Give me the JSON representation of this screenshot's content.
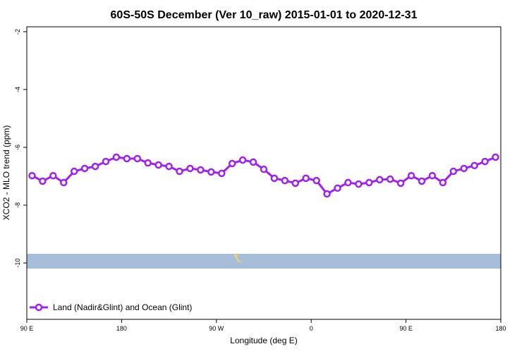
{
  "chart_data": {
    "type": "line",
    "title": "60S-50S December (Ver 10_raw)   2015-01-01 to 2020-12-31",
    "xlabel": "Longitude (deg E)",
    "ylabel": "XCO2 - MLO trend (ppm)",
    "x": [
      95,
      105,
      115,
      125,
      135,
      145,
      155,
      165,
      175,
      185,
      195,
      205,
      215,
      225,
      235,
      245,
      255,
      265,
      275,
      285,
      295,
      305,
      315,
      325,
      335,
      345,
      355,
      365,
      375,
      385,
      395,
      405,
      415,
      425,
      435,
      445,
      455,
      465,
      475,
      485,
      495,
      505,
      515,
      525,
      535
    ],
    "series": [
      {
        "name": "Land (Nadir&Glint) and Ocean (Glint)",
        "color": "#a020f0",
        "values": [
          -6.98,
          -7.17,
          -6.98,
          -7.22,
          -6.83,
          -6.73,
          -6.66,
          -6.49,
          -6.34,
          -6.39,
          -6.39,
          -6.54,
          -6.61,
          -6.66,
          -6.83,
          -6.73,
          -6.78,
          -6.85,
          -6.9,
          -6.56,
          -6.44,
          -6.51,
          -6.76,
          -7.07,
          -7.15,
          -7.24,
          -7.07,
          -7.15,
          -7.61,
          -7.41,
          -7.22,
          -7.27,
          -7.22,
          -7.12,
          -7.1,
          -7.24,
          -6.98,
          -7.17,
          -6.98,
          -7.22,
          -6.83,
          -6.73,
          -6.63,
          -6.49,
          -6.34
        ]
      }
    ],
    "xlim": [
      90,
      540
    ],
    "xticks": [
      {
        "value": 90,
        "label": "90 E"
      },
      180,
      {
        "value": 270,
        "label": "90 W"
      },
      {
        "value": 360,
        "label": "0"
      },
      {
        "value": 450,
        "label": "90 E"
      },
      {
        "value": 540,
        "label": "180"
      }
    ],
    "ylim": [
      -11.95,
      -1.83
    ],
    "yticks": [
      -2,
      -4,
      -6,
      -8,
      -10
    ],
    "legend": "bottom-left"
  }
}
